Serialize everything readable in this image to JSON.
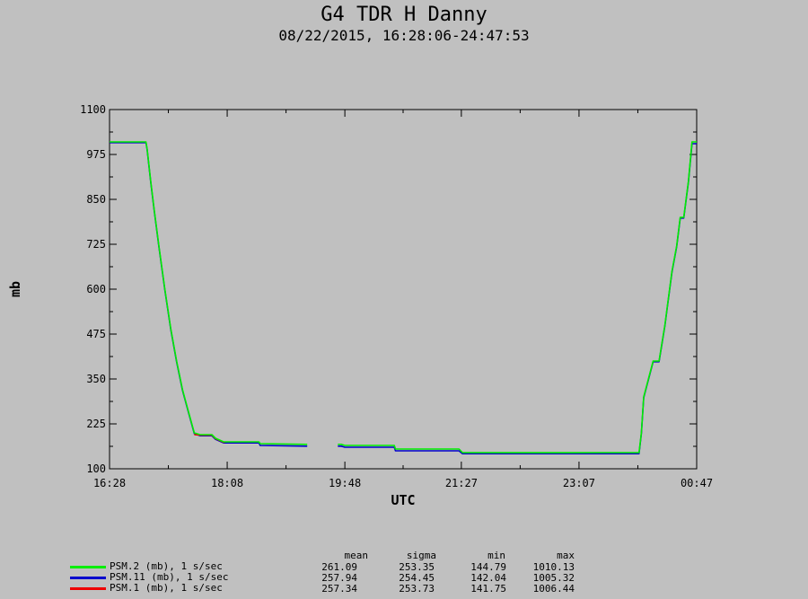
{
  "title": "G4 TDR H Danny",
  "subtitle": "08/22/2015, 16:28:06-24:47:53",
  "chart_data": {
    "type": "line",
    "title": "G4 TDR H Danny",
    "subtitle": "08/22/2015, 16:28:06-24:47:53",
    "xlabel": "UTC",
    "ylabel": "mb",
    "x_ticks": [
      "16:28",
      "18:08",
      "19:48",
      "21:27",
      "23:07",
      "00:47"
    ],
    "y_ticks": [
      100,
      225,
      350,
      475,
      600,
      725,
      850,
      975,
      1100
    ],
    "xlim": [
      "16:28",
      "00:47"
    ],
    "ylim": [
      100,
      1100
    ],
    "grid": false,
    "legend_position": "bottom-left",
    "stats_headers": [
      "mean",
      "sigma",
      "min",
      "max"
    ],
    "series": [
      {
        "name": "PSM.2 (mb), 1 s/sec",
        "color": "#00ee00",
        "stats": [
          "261.09",
          "253.35",
          "144.79",
          "1010.13"
        ],
        "x": [
          "16:28",
          "16:59",
          "17:00",
          "17:03",
          "17:06",
          "17:10",
          "17:15",
          "17:20",
          "17:25",
          "17:30",
          "17:35",
          "17:40",
          "17:45",
          "17:50",
          "17:55",
          "17:58",
          "18:05",
          "18:06",
          "18:35",
          "18:36",
          "19:15",
          "19:16",
          "19:35",
          "19:40",
          "19:42",
          "19:45",
          "19:48",
          "19:50",
          "20:30",
          "20:31",
          "21:25",
          "21:28",
          "22:30",
          "23:00",
          "23:27",
          "23:30",
          "23:31",
          "23:55",
          "23:58",
          "00:00",
          "00:02",
          "00:10",
          "00:15",
          "00:20",
          "00:22",
          "00:26",
          "00:30",
          "00:33",
          "00:36",
          "00:40",
          "00:43",
          "00:47"
        ],
        "y": [
          1010,
          1010,
          990,
          900,
          820,
          720,
          600,
          490,
          400,
          320,
          260,
          200,
          195,
          195,
          195,
          185,
          175,
          175,
          175,
          170,
          168,
          168,
          null,
          null,
          168,
          168,
          165,
          165,
          165,
          155,
          155,
          145,
          144.8,
          144.8,
          145,
          145,
          145,
          145,
          145,
          200,
          300,
          400,
          400,
          500,
          550,
          650,
          720,
          800,
          800,
          900,
          1010,
          1010
        ]
      },
      {
        "name": "PSM.11 (mb), 1 s/sec",
        "color": "#0000cc",
        "stats": [
          "257.94",
          "254.45",
          "142.04",
          "1005.32"
        ],
        "x": [
          "16:28",
          "16:59",
          "17:00",
          "17:03",
          "17:06",
          "17:10",
          "17:15",
          "17:20",
          "17:25",
          "17:30",
          "17:35",
          "17:40",
          "17:45",
          "17:50",
          "17:55",
          "17:58",
          "18:05",
          "18:06",
          "18:35",
          "18:36",
          "19:15",
          "19:16",
          "19:35",
          "19:40",
          "19:42",
          "19:45",
          "19:48",
          "19:50",
          "20:30",
          "20:31",
          "21:25",
          "21:28",
          "22:30",
          "23:00",
          "23:27",
          "23:30",
          "23:31",
          "23:55",
          "23:58",
          "00:00",
          "00:02",
          "00:10",
          "00:15",
          "00:20",
          "00:22",
          "00:26",
          "00:30",
          "00:33",
          "00:36",
          "00:40",
          "00:43",
          "00:47"
        ],
        "y": [
          1008,
          1008,
          988,
          898,
          818,
          718,
          598,
          488,
          398,
          318,
          258,
          198,
          192,
          192,
          192,
          182,
          172,
          172,
          172,
          165,
          163,
          163,
          null,
          null,
          163,
          163,
          160,
          160,
          160,
          150,
          150,
          142,
          142,
          142,
          142,
          142,
          142,
          142,
          142,
          198,
          298,
          398,
          398,
          498,
          548,
          648,
          718,
          798,
          798,
          898,
          1005,
          1005
        ]
      },
      {
        "name": "PSM.1 (mb), 1 s/sec",
        "color": "#ee0000",
        "stats": [
          "257.34",
          "253.73",
          "141.75",
          "1006.44"
        ],
        "x": [
          "17:40",
          "17:45",
          "17:50",
          "17:55",
          "17:58",
          "18:05",
          "18:06"
        ],
        "y": [
          195,
          194,
          194,
          194,
          184,
          174,
          174
        ]
      }
    ]
  }
}
